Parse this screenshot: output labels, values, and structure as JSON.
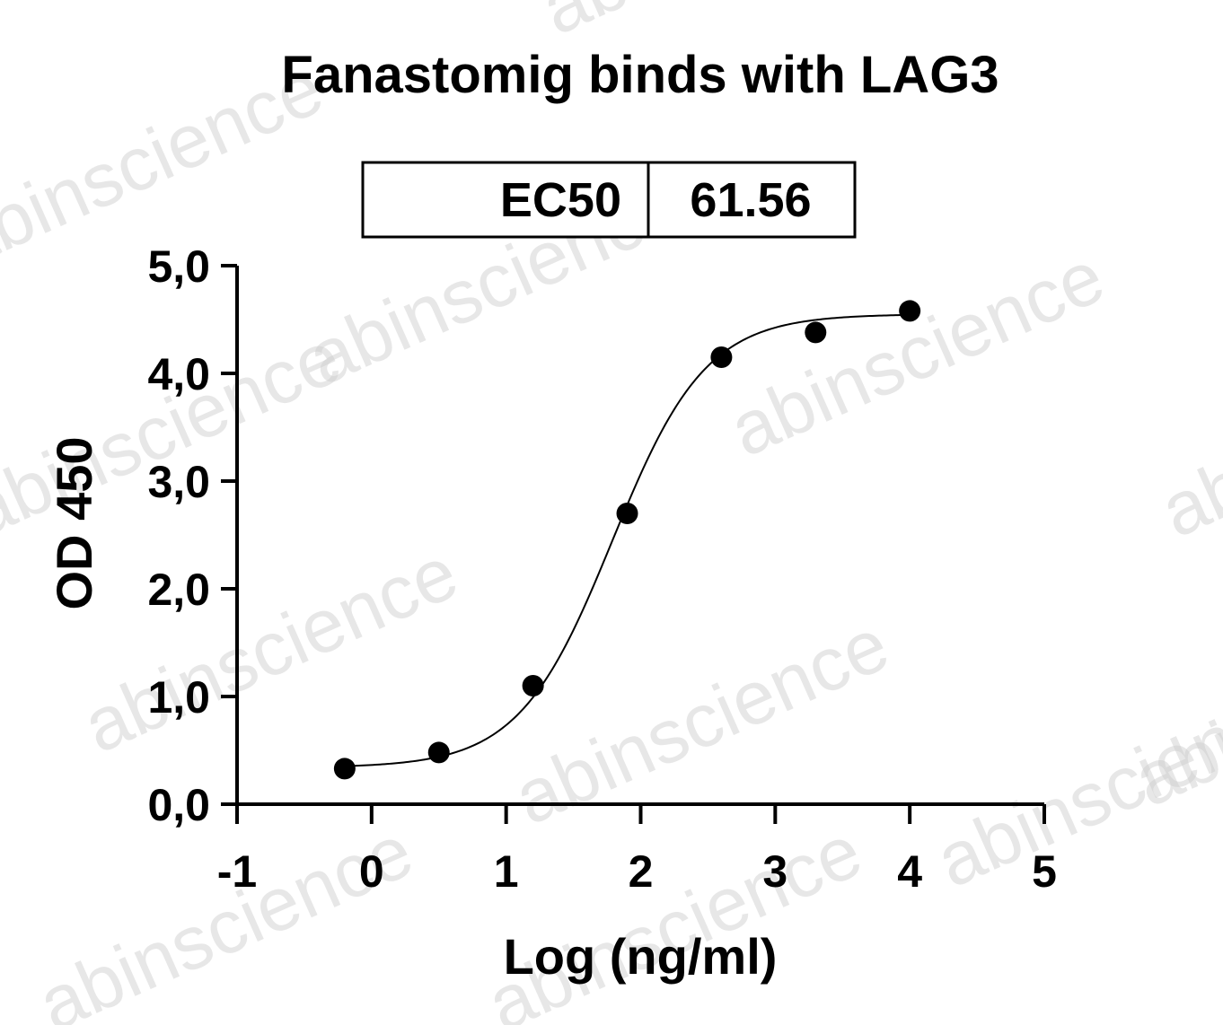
{
  "chart_data": {
    "type": "scatter",
    "title": "Fanastomig binds with LAG3",
    "xlabel": "Log (ng/ml)",
    "ylabel": "OD 450",
    "xlim": [
      -1,
      5
    ],
    "ylim": [
      0,
      5
    ],
    "x_ticks": [
      -1,
      0,
      1,
      2,
      3,
      4,
      5
    ],
    "x_tick_labels": [
      "-1",
      "0",
      "1",
      "2",
      "3",
      "4",
      "5"
    ],
    "y_ticks": [
      0,
      1,
      2,
      3,
      4,
      5
    ],
    "y_tick_labels": [
      "0,0",
      "1,0",
      "2,0",
      "3,0",
      "4,0",
      "5,0"
    ],
    "grid": false,
    "series": [
      {
        "x": [
          -0.2,
          0.5,
          1.2,
          1.9,
          2.6,
          3.3,
          4.0
        ],
        "y": [
          0.33,
          0.48,
          1.1,
          2.7,
          4.15,
          4.38,
          4.58
        ]
      }
    ],
    "fit_curve": {
      "model": "4PL",
      "bottom": 0.34,
      "top": 4.55,
      "log_ec50": 1.789,
      "hill_slope": 1.25
    },
    "ec50_table": {
      "label": "EC50",
      "value": "61.56"
    },
    "watermark": "abinscience"
  }
}
